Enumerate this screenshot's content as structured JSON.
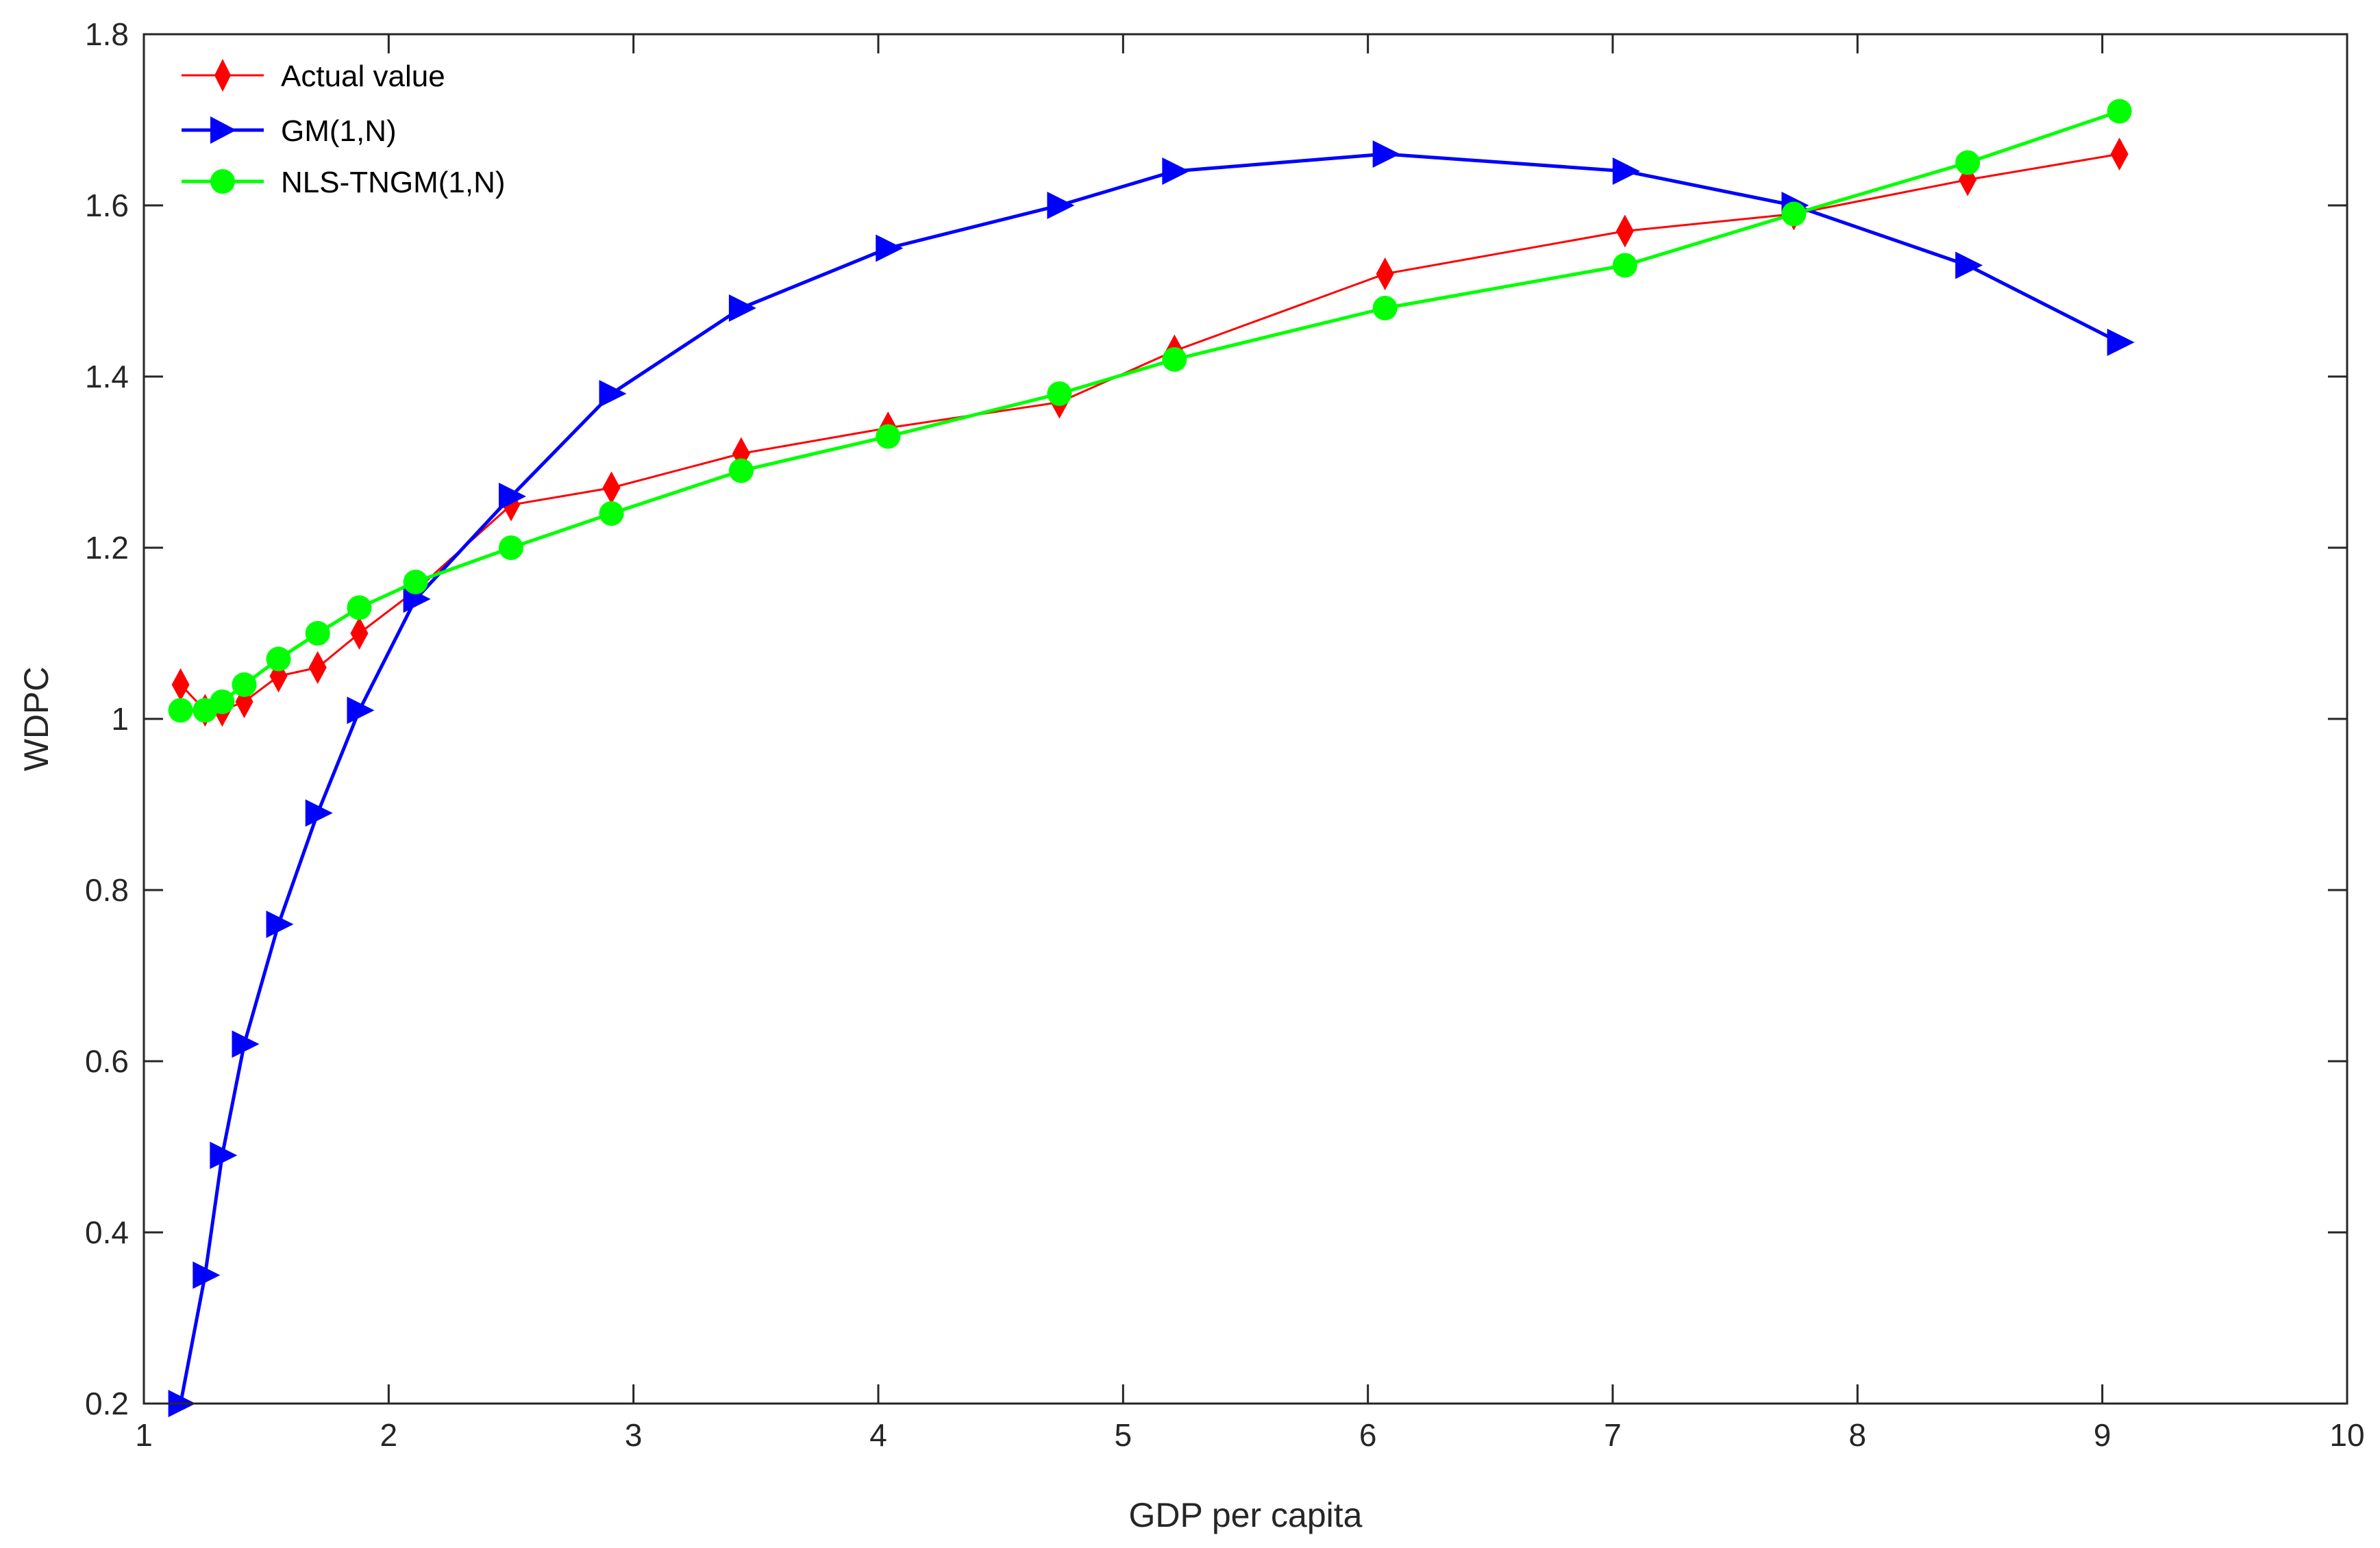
{
  "chart_data": {
    "type": "line",
    "xlabel": "GDP per capita",
    "ylabel": "WDPC",
    "xlim": [
      1,
      10
    ],
    "ylim": [
      0.2,
      1.8
    ],
    "xticks": [
      1,
      2,
      3,
      4,
      5,
      6,
      7,
      8,
      9,
      10
    ],
    "yticks": [
      0.2,
      0.4,
      0.6,
      0.8,
      1,
      1.2,
      1.4,
      1.6,
      1.8
    ],
    "xtick_labels": [
      "1",
      "2",
      "3",
      "4",
      "5",
      "6",
      "7",
      "8",
      "9",
      "10"
    ],
    "ytick_labels": [
      "0.2",
      "0.4",
      "0.6",
      "0.8",
      "1",
      "1.2",
      "1.4",
      "1.6",
      "1.8"
    ],
    "grid": false,
    "legend_position": "top-left",
    "x": [
      1.15,
      1.25,
      1.32,
      1.41,
      1.55,
      1.71,
      1.88,
      2.11,
      2.5,
      2.91,
      3.44,
      4.04,
      4.74,
      5.21,
      6.07,
      7.05,
      7.74,
      8.45,
      9.07
    ],
    "series": [
      {
        "name": "Actual value",
        "color": "#ff0000",
        "marker": "diamond",
        "values": [
          1.04,
          1.01,
          1.01,
          1.02,
          1.05,
          1.06,
          1.1,
          1.15,
          1.25,
          1.27,
          1.31,
          1.34,
          1.37,
          1.43,
          1.52,
          1.57,
          1.59,
          1.63,
          1.66
        ]
      },
      {
        "name": "GM(1,N)",
        "color": "#0000ff",
        "marker": "triangle-right",
        "values": [
          0.2,
          0.35,
          0.49,
          0.62,
          0.76,
          0.89,
          1.01,
          1.14,
          1.26,
          1.38,
          1.48,
          1.55,
          1.6,
          1.64,
          1.66,
          1.64,
          1.6,
          1.53,
          1.44
        ]
      },
      {
        "name": "NLS-TNGM(1,N)",
        "color": "#00ff00",
        "marker": "circle",
        "values": [
          1.01,
          1.01,
          1.02,
          1.04,
          1.07,
          1.1,
          1.13,
          1.16,
          1.2,
          1.24,
          1.29,
          1.33,
          1.38,
          1.42,
          1.48,
          1.53,
          1.59,
          1.65,
          1.71
        ]
      }
    ]
  }
}
